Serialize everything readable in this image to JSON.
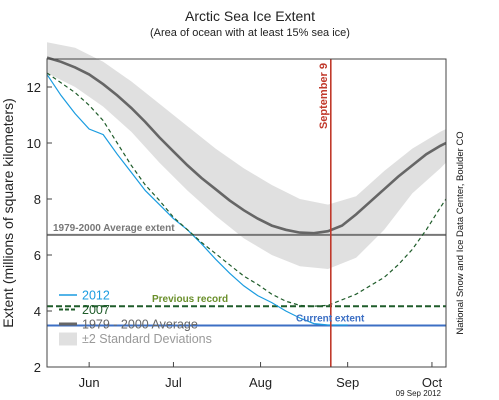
{
  "chart_data": {
    "type": "line",
    "title": "Arctic Sea Ice Extent",
    "subtitle": "(Area of ocean with at least 15% sea ice)",
    "ylabel": "Extent (millions of square kilometers)",
    "xlabel": "",
    "ylim": [
      2,
      13
    ],
    "x_domain_days": [
      0,
      142
    ],
    "y_ticks": [
      2,
      4,
      6,
      8,
      10,
      12
    ],
    "month_ticks": [
      {
        "label": "Jun",
        "day": 15
      },
      {
        "label": "Jul",
        "day": 45
      },
      {
        "label": "Aug",
        "day": 76
      },
      {
        "label": "Sep",
        "day": 107
      },
      {
        "label": "Oct",
        "day": 137
      }
    ],
    "x_day_labels_origin": "May 31",
    "series": [
      {
        "name": "2012",
        "color": "#1a9ce0",
        "style": "solid",
        "points": [
          [
            0,
            12.45
          ],
          [
            5,
            11.7
          ],
          [
            10,
            11.05
          ],
          [
            15,
            10.5
          ],
          [
            20,
            10.3
          ],
          [
            25,
            9.6
          ],
          [
            30,
            8.95
          ],
          [
            35,
            8.3
          ],
          [
            40,
            7.8
          ],
          [
            45,
            7.3
          ],
          [
            50,
            6.9
          ],
          [
            55,
            6.4
          ],
          [
            60,
            5.85
          ],
          [
            65,
            5.35
          ],
          [
            70,
            4.9
          ],
          [
            75,
            4.55
          ],
          [
            80,
            4.3
          ],
          [
            85,
            4.0
          ],
          [
            90,
            3.75
          ],
          [
            95,
            3.55
          ],
          [
            100,
            3.5
          ],
          [
            105,
            3.5
          ],
          [
            107,
            3.5
          ]
        ]
      },
      {
        "name": "2007",
        "color": "#1f5c2a",
        "style": "dashed",
        "points": [
          [
            0,
            12.5
          ],
          [
            5,
            12.15
          ],
          [
            10,
            11.8
          ],
          [
            15,
            11.35
          ],
          [
            20,
            10.8
          ],
          [
            25,
            10.0
          ],
          [
            30,
            9.2
          ],
          [
            35,
            8.5
          ],
          [
            40,
            7.95
          ],
          [
            45,
            7.35
          ],
          [
            50,
            6.9
          ],
          [
            55,
            6.45
          ],
          [
            60,
            6.05
          ],
          [
            65,
            5.65
          ],
          [
            70,
            5.25
          ],
          [
            75,
            4.95
          ],
          [
            80,
            4.6
          ],
          [
            85,
            4.35
          ],
          [
            90,
            4.2
          ],
          [
            95,
            4.17
          ],
          [
            100,
            4.2
          ],
          [
            105,
            4.4
          ],
          [
            110,
            4.6
          ],
          [
            115,
            4.9
          ],
          [
            120,
            5.2
          ],
          [
            125,
            5.65
          ],
          [
            130,
            6.2
          ],
          [
            135,
            6.9
          ],
          [
            140,
            7.7
          ],
          [
            142,
            8.0
          ]
        ]
      },
      {
        "name": "1979 - 2000 Average",
        "color": "#666666",
        "style": "solid",
        "points": [
          [
            0,
            13.05
          ],
          [
            5,
            12.9
          ],
          [
            10,
            12.7
          ],
          [
            15,
            12.45
          ],
          [
            20,
            12.1
          ],
          [
            25,
            11.7
          ],
          [
            30,
            11.25
          ],
          [
            35,
            10.75
          ],
          [
            40,
            10.2
          ],
          [
            45,
            9.7
          ],
          [
            50,
            9.2
          ],
          [
            55,
            8.75
          ],
          [
            60,
            8.35
          ],
          [
            65,
            7.95
          ],
          [
            70,
            7.6
          ],
          [
            75,
            7.3
          ],
          [
            80,
            7.05
          ],
          [
            85,
            6.9
          ],
          [
            90,
            6.8
          ],
          [
            95,
            6.78
          ],
          [
            100,
            6.85
          ],
          [
            105,
            7.05
          ],
          [
            110,
            7.45
          ],
          [
            115,
            7.9
          ],
          [
            120,
            8.35
          ],
          [
            125,
            8.8
          ],
          [
            130,
            9.2
          ],
          [
            135,
            9.6
          ],
          [
            140,
            9.9
          ],
          [
            142,
            10.0
          ]
        ]
      }
    ],
    "std_band": {
      "name": "±2 Standard Deviations",
      "color": "#e0e0e0",
      "upper": [
        [
          0,
          13.6
        ],
        [
          10,
          13.4
        ],
        [
          20,
          12.9
        ],
        [
          30,
          12.2
        ],
        [
          40,
          11.4
        ],
        [
          50,
          10.6
        ],
        [
          60,
          9.8
        ],
        [
          70,
          9.1
        ],
        [
          80,
          8.5
        ],
        [
          90,
          8.0
        ],
        [
          100,
          7.8
        ],
        [
          110,
          8.1
        ],
        [
          120,
          9.0
        ],
        [
          130,
          9.8
        ],
        [
          140,
          10.4
        ],
        [
          142,
          10.5
        ]
      ],
      "lower": [
        [
          0,
          12.5
        ],
        [
          10,
          12.0
        ],
        [
          20,
          11.3
        ],
        [
          30,
          10.4
        ],
        [
          40,
          9.3
        ],
        [
          50,
          8.3
        ],
        [
          60,
          7.4
        ],
        [
          70,
          6.6
        ],
        [
          80,
          6.0
        ],
        [
          90,
          5.6
        ],
        [
          100,
          5.5
        ],
        [
          110,
          5.9
        ],
        [
          120,
          6.9
        ],
        [
          130,
          8.2
        ],
        [
          140,
          9.1
        ],
        [
          142,
          9.3
        ]
      ]
    },
    "reference_lines": [
      {
        "name": "1979-2000 Average extent",
        "value": 6.72,
        "color": "#777777"
      },
      {
        "name": "Previous record",
        "value": 4.17,
        "color": "#1f5c2a"
      },
      {
        "name": "Current extent",
        "value": 3.48,
        "color": "#3c6fc4"
      }
    ],
    "vertical_marker": {
      "label": "September 9",
      "day": 101,
      "color": "#c0392b"
    },
    "annotations": {
      "avg_extent": {
        "text": "1979-2000 Average extent",
        "color": "#777777"
      },
      "previous_record": {
        "text": "Previous record",
        "color": "#6a8f2a"
      },
      "current_extent": {
        "text": "Current extent",
        "color": "#3c6fc4"
      }
    },
    "legend": {
      "placement": "bottom-left",
      "entries": [
        {
          "label": "2012",
          "color": "#1a9ce0"
        },
        {
          "label": "2007",
          "color": "#1f5c2a"
        },
        {
          "label": "1979 - 2000 Average",
          "color": "#666666"
        },
        {
          "label": "±2 Standard Deviations",
          "color": "#999999"
        }
      ]
    },
    "credit": "National Snow and Ice Data Center, Boulder CO",
    "date_stamp": "09 Sep 2012"
  }
}
